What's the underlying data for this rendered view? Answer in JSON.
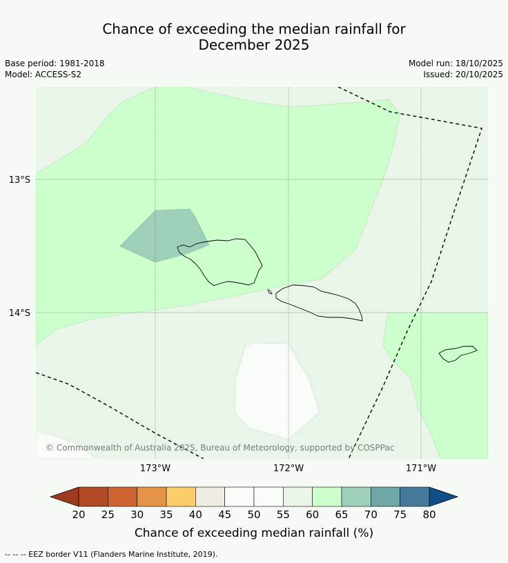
{
  "header": {
    "title_line1": "Chance of exceeding the median rainfall for",
    "title_line2": "December 2025",
    "base_period": "Base period: 1981-2018",
    "model": "Model: ACCESS-S2",
    "model_run": "Model run: 18/10/2025",
    "issued": "Issued: 20/10/2025"
  },
  "map": {
    "lat_labels": [
      "13°S",
      "14°S"
    ],
    "lon_labels": [
      "173°W",
      "172°W",
      "171°W"
    ],
    "copyright": "© Commonwealth of Australia 2025, Bureau of Meteorology, supported by COSPPac"
  },
  "legend": {
    "title": "Chance of exceeding median rainfall (%)",
    "ticks": [
      "20",
      "25",
      "30",
      "35",
      "40",
      "45",
      "50",
      "55",
      "60",
      "65",
      "70",
      "75",
      "80"
    ],
    "colors": {
      "below_20": "#9e3a20",
      "20_25": "#b34a26",
      "25_30": "#cd6432",
      "30_35": "#e49347",
      "35_40": "#fdcd6c",
      "40_45": "#efebe5",
      "45_50": "#f8fbf7",
      "50_55": "#f8fbf7",
      "55_60": "#eaf5ea",
      "60_65": "#ccffcc",
      "65_70": "#9dcfb9",
      "70_75": "#6fa6a8",
      "75_80": "#44799b",
      "above_80": "#104d89"
    }
  },
  "footer": {
    "eez_note": "--  --  -- EEZ border V11 (Flanders Marine Institute, 2019)."
  }
}
